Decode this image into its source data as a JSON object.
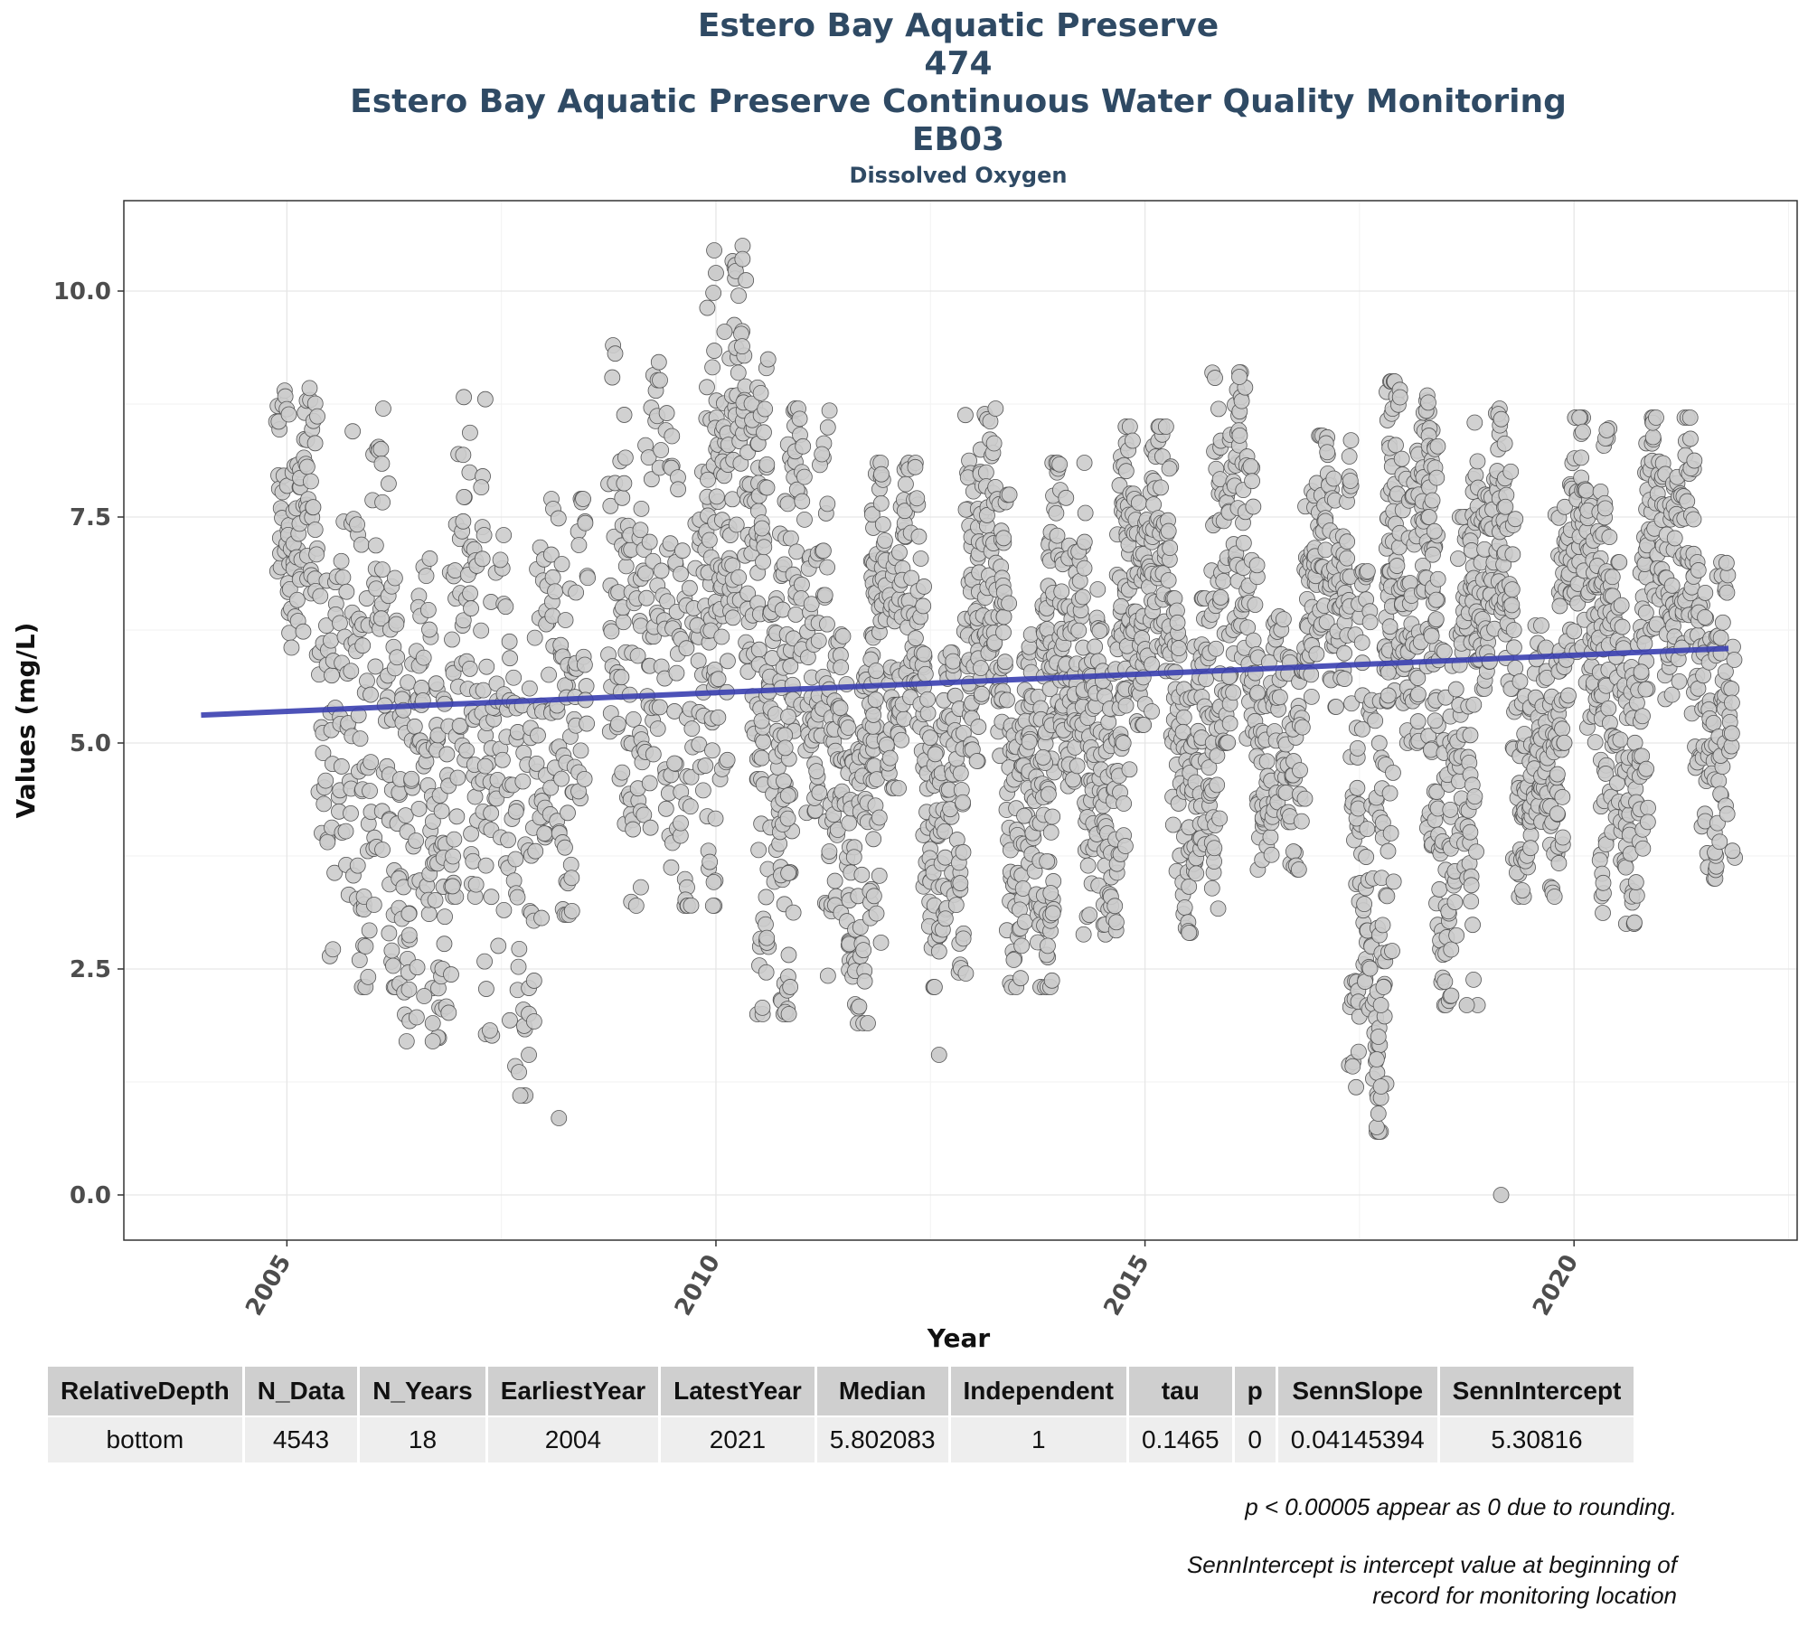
{
  "titles": {
    "line1": "Estero Bay Aquatic Preserve",
    "line2": "474",
    "line3": "Estero Bay Aquatic Preserve Continuous Water Quality Monitoring",
    "line4": "EB03",
    "subtitle": "Dissolved Oxygen"
  },
  "chart_data": {
    "type": "scatter",
    "xlabel": "Year",
    "ylabel": "Values (mg/L)",
    "xlim": [
      2003.1,
      2022.6
    ],
    "ylim": [
      -0.5,
      11.0
    ],
    "x_ticks": [
      2005,
      2010,
      2015,
      2020
    ],
    "y_ticks": [
      0.0,
      2.5,
      5.0,
      7.5,
      10.0
    ],
    "y_tick_labels": [
      "0.0",
      "2.5",
      "5.0",
      "7.5",
      "10.0"
    ],
    "grid": true,
    "point_color": "#cccccc",
    "point_edge_color": "#555555",
    "trend_color": "#3a3fb0",
    "trend": {
      "x0": 2004.0,
      "y0": 5.30816,
      "slope": 0.04145394,
      "x1": 2021.8
    },
    "seasons": [
      {
        "start": 2004.88,
        "end": 2005.35,
        "lo": 5.8,
        "hi": 9.0,
        "n": 90
      },
      {
        "start": 2005.35,
        "end": 2005.75,
        "lo": 2.6,
        "hi": 7.5,
        "n": 60
      },
      {
        "start": 2005.75,
        "end": 2006.3,
        "lo": 2.3,
        "hi": 8.7,
        "n": 110
      },
      {
        "start": 2006.3,
        "end": 2006.9,
        "lo": 1.7,
        "hi": 7.1,
        "n": 120
      },
      {
        "start": 2006.9,
        "end": 2007.3,
        "lo": 3.3,
        "hi": 8.9,
        "n": 80
      },
      {
        "start": 2007.3,
        "end": 2008.0,
        "lo": 1.1,
        "hi": 7.3,
        "n": 110
      },
      {
        "start": 2008.0,
        "end": 2008.5,
        "lo": 3.1,
        "hi": 7.7,
        "n": 90
      },
      {
        "start": 2008.75,
        "end": 2009.5,
        "lo": 3.2,
        "hi": 9.4,
        "n": 140
      },
      {
        "start": 2009.5,
        "end": 2010.0,
        "lo": 3.2,
        "hi": 8.0,
        "n": 80
      },
      {
        "start": 2009.9,
        "end": 2010.6,
        "lo": 4.6,
        "hi": 10.5,
        "n": 180
      },
      {
        "start": 2010.5,
        "end": 2010.9,
        "lo": 2.0,
        "hi": 6.6,
        "n": 90
      },
      {
        "start": 2010.75,
        "end": 2011.3,
        "lo": 4.1,
        "hi": 8.7,
        "n": 120
      },
      {
        "start": 2011.3,
        "end": 2011.9,
        "lo": 1.9,
        "hi": 6.2,
        "n": 150
      },
      {
        "start": 2011.8,
        "end": 2012.4,
        "lo": 4.5,
        "hi": 8.1,
        "n": 140
      },
      {
        "start": 2012.4,
        "end": 2012.9,
        "lo": 2.3,
        "hi": 6.0,
        "n": 130
      },
      {
        "start": 2012.9,
        "end": 2013.4,
        "lo": 4.8,
        "hi": 8.7,
        "n": 140
      },
      {
        "start": 2013.4,
        "end": 2013.95,
        "lo": 2.3,
        "hi": 6.2,
        "n": 150
      },
      {
        "start": 2013.8,
        "end": 2014.3,
        "lo": 4.4,
        "hi": 8.1,
        "n": 140
      },
      {
        "start": 2014.3,
        "end": 2014.8,
        "lo": 2.7,
        "hi": 6.7,
        "n": 140
      },
      {
        "start": 2014.7,
        "end": 2015.3,
        "lo": 5.2,
        "hi": 8.5,
        "n": 160
      },
      {
        "start": 2015.3,
        "end": 2015.85,
        "lo": 2.9,
        "hi": 6.6,
        "n": 140
      },
      {
        "start": 2015.8,
        "end": 2016.3,
        "lo": 5.0,
        "hi": 9.1,
        "n": 130
      },
      {
        "start": 2016.3,
        "end": 2016.85,
        "lo": 3.6,
        "hi": 6.4,
        "n": 110
      },
      {
        "start": 2016.85,
        "end": 2017.4,
        "lo": 5.4,
        "hi": 8.4,
        "n": 130
      },
      {
        "start": 2017.4,
        "end": 2017.9,
        "lo": 0.7,
        "hi": 6.9,
        "n": 150
      },
      {
        "start": 2017.8,
        "end": 2018.4,
        "lo": 5.0,
        "hi": 9.0,
        "n": 160
      },
      {
        "start": 2018.3,
        "end": 2018.85,
        "lo": 2.1,
        "hi": 7.5,
        "n": 150
      },
      {
        "start": 2018.8,
        "end": 2019.3,
        "lo": 5.6,
        "hi": 8.7,
        "n": 130
      },
      {
        "start": 2019.3,
        "end": 2019.85,
        "lo": 3.3,
        "hi": 6.3,
        "n": 130
      },
      {
        "start": 2019.8,
        "end": 2020.4,
        "lo": 5.0,
        "hi": 8.6,
        "n": 150
      },
      {
        "start": 2020.3,
        "end": 2020.85,
        "lo": 3.0,
        "hi": 7.0,
        "n": 140
      },
      {
        "start": 2020.8,
        "end": 2021.4,
        "lo": 5.3,
        "hi": 8.6,
        "n": 140
      },
      {
        "start": 2021.4,
        "end": 2021.85,
        "lo": 3.5,
        "hi": 7.0,
        "n": 110
      }
    ],
    "outliers": [
      [
        2019.15,
        0.0
      ],
      [
        2008.17,
        0.85
      ],
      [
        2007.72,
        1.1
      ],
      [
        2007.82,
        1.55
      ],
      [
        2012.6,
        1.55
      ],
      [
        2017.7,
        0.75
      ],
      [
        2017.72,
        0.9
      ],
      [
        2017.75,
        1.2
      ],
      [
        2017.7,
        1.5
      ],
      [
        2017.72,
        1.75
      ],
      [
        2017.75,
        2.1
      ],
      [
        2017.78,
        2.3
      ],
      [
        2018.75,
        2.1
      ],
      [
        2011.77,
        1.9
      ],
      [
        2006.7,
        1.7
      ],
      [
        2006.7,
        1.9
      ],
      [
        2006.6,
        2.2
      ],
      [
        2010.1,
        9.55
      ],
      [
        2016.1,
        9.05
      ],
      [
        2009.98,
        10.45
      ],
      [
        2010.0,
        10.2
      ],
      [
        2009.97,
        9.98
      ]
    ]
  },
  "table": {
    "headers": [
      "RelativeDepth",
      "N_Data",
      "N_Years",
      "EarliestYear",
      "LatestYear",
      "Median",
      "Independent",
      "tau",
      "p",
      "SennSlope",
      "SennIntercept"
    ],
    "row": [
      "bottom",
      "4543",
      "18",
      "2004",
      "2021",
      "5.802083",
      "1",
      "0.1465",
      "0",
      "0.04145394",
      "5.30816"
    ]
  },
  "notes": {
    "rounding": "p < 0.00005 appear as 0 due to rounding.",
    "intercept_line1": "SennIntercept is intercept value at beginning of",
    "intercept_line2": "record for monitoring location"
  }
}
